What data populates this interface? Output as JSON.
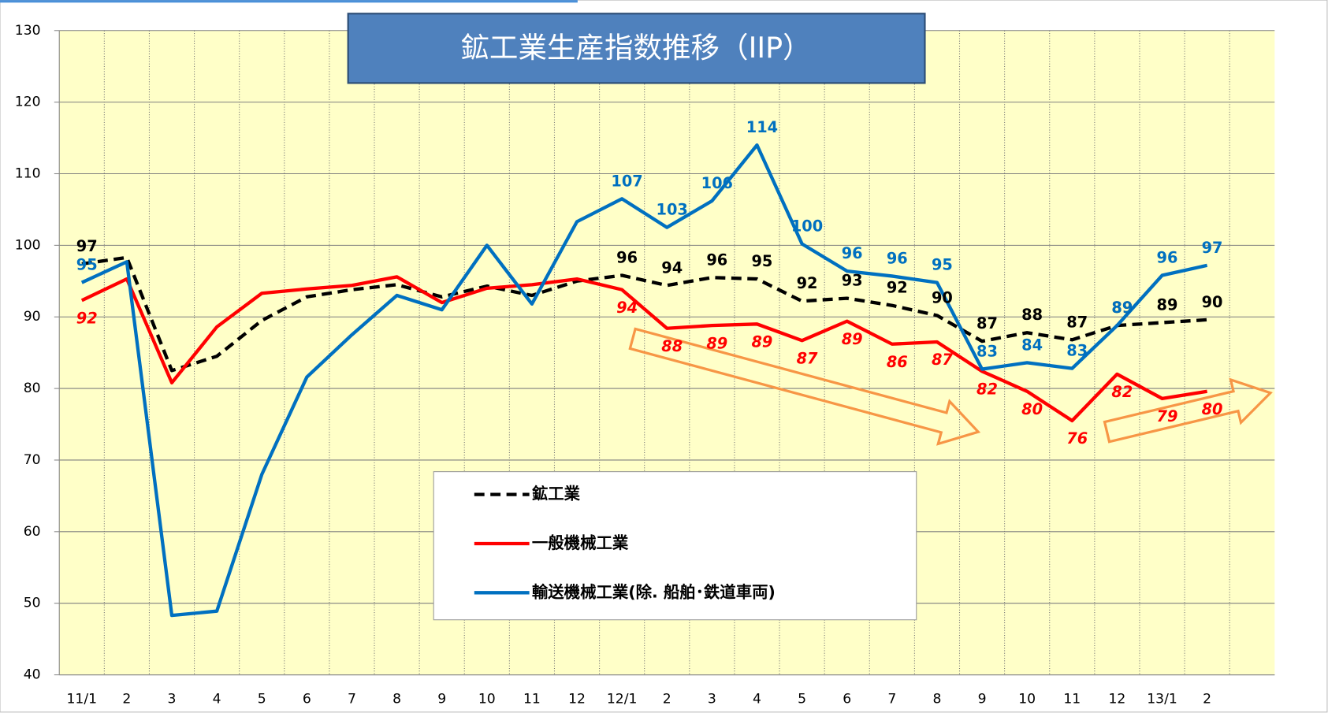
{
  "chart_data": {
    "type": "line",
    "title": "鉱工業生産指数推移（IIP）",
    "categories": [
      "11/1",
      "2",
      "3",
      "4",
      "5",
      "6",
      "7",
      "8",
      "9",
      "10",
      "11",
      "12",
      "12/1",
      "2",
      "3",
      "4",
      "5",
      "6",
      "7",
      "8",
      "9",
      "10",
      "11",
      "12",
      "13/1",
      "2",
      null
    ],
    "ylim": [
      40,
      130
    ],
    "yticks": [
      40,
      50,
      60,
      70,
      80,
      90,
      100,
      110,
      120,
      130
    ],
    "grid": true,
    "series": [
      {
        "name": "鉱工業",
        "color": "#000000",
        "line_style": "dashed",
        "label_position": "above",
        "values": [
          97.4,
          98.3,
          82.5,
          84.5,
          89.5,
          92.8,
          93.8,
          94.5,
          92.8,
          94.3,
          93,
          95,
          95.8,
          94.4,
          95.5,
          95.3,
          92.2,
          92.6,
          91.6,
          90.2,
          86.6,
          87.8,
          86.8,
          88.8,
          89.2,
          89.6,
          null
        ],
        "value_labels": [
          "97",
          null,
          null,
          null,
          null,
          null,
          null,
          null,
          null,
          null,
          null,
          null,
          "96",
          "94",
          "96",
          "95",
          "92",
          "93",
          "92",
          "90",
          "87",
          "88",
          "87",
          "89",
          "89",
          "90",
          null
        ]
      },
      {
        "name": "一般機械工業",
        "color": "#ff0000",
        "line_style": "solid",
        "label_position": "below",
        "values": [
          92.3,
          95.3,
          80.8,
          88.6,
          93.3,
          93.9,
          94.4,
          95.6,
          92,
          94,
          94.5,
          95.3,
          93.8,
          88.4,
          88.8,
          89,
          86.7,
          89.4,
          86.2,
          86.5,
          82.4,
          79.6,
          75.5,
          82,
          78.6,
          79.6,
          null
        ],
        "value_labels": [
          "92",
          null,
          null,
          null,
          null,
          null,
          null,
          null,
          null,
          null,
          null,
          null,
          "94",
          "88",
          "89",
          "89",
          "87",
          "89",
          "86",
          "87",
          "82",
          "80",
          "76",
          "82",
          "79",
          "80",
          null
        ]
      },
      {
        "name": "輸送機械工業(除. 船舶･鉄道車両)",
        "color": "#0070c0",
        "line_style": "solid",
        "label_position": "above",
        "values": [
          94.8,
          97.7,
          48.3,
          48.9,
          68,
          81.6,
          87.5,
          93,
          91,
          100,
          91.8,
          103.3,
          106.5,
          102.5,
          106.2,
          114,
          100.2,
          96.4,
          95.7,
          94.8,
          82.7,
          83.6,
          82.8,
          88.8,
          95.8,
          97.2,
          null
        ],
        "value_labels": [
          "95",
          null,
          null,
          null,
          null,
          null,
          null,
          null,
          null,
          null,
          null,
          null,
          "107",
          "103",
          "106",
          "114",
          "100",
          "96",
          "96",
          "95",
          "83",
          "84",
          "83",
          "89",
          "96",
          "97",
          null
        ]
      }
    ]
  }
}
